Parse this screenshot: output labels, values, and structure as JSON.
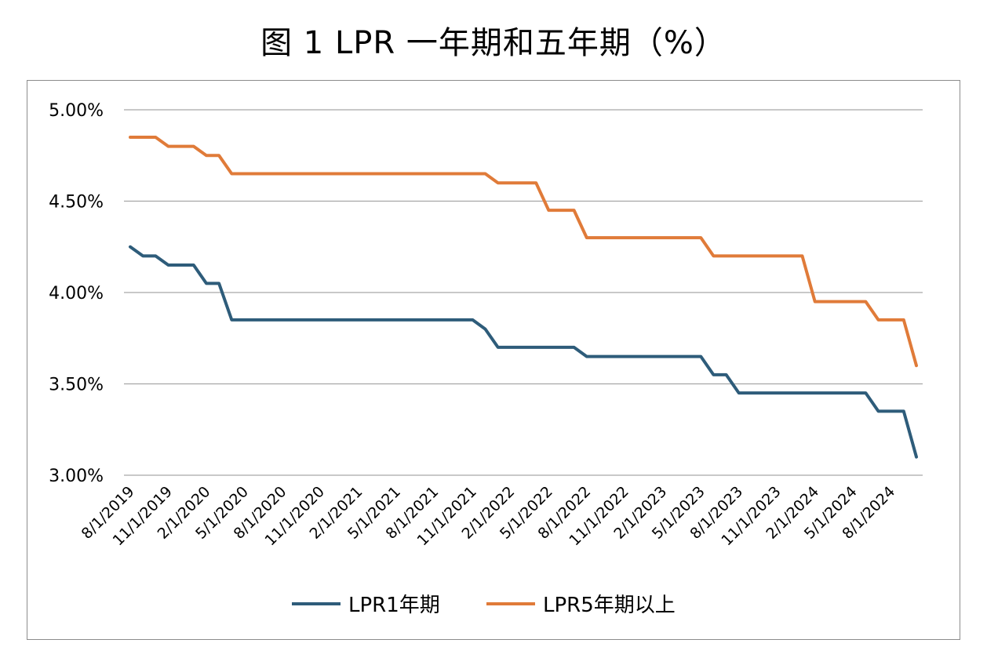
{
  "chart_data": {
    "type": "line",
    "title": "图 1 LPR 一年期和五年期（%）",
    "ylim": [
      3.0,
      5.0
    ],
    "y_ticks": [
      "3.00%",
      "3.50%",
      "4.00%",
      "4.50%",
      "5.00%"
    ],
    "y_tick_values": [
      3.0,
      3.5,
      4.0,
      4.5,
      5.0
    ],
    "x_tick_labels": [
      "8/1/2019",
      "11/1/2019",
      "2/1/2020",
      "5/1/2020",
      "8/1/2020",
      "11/1/2020",
      "2/1/2021",
      "5/1/2021",
      "8/1/2021",
      "11/1/2021",
      "2/1/2022",
      "5/1/2022",
      "8/1/2022",
      "11/1/2022",
      "2/1/2023",
      "5/1/2023",
      "8/1/2023",
      "11/1/2023",
      "2/1/2024",
      "5/1/2024",
      "8/1/2024"
    ],
    "grid": true,
    "legend_position": "bottom",
    "series": [
      {
        "name": "LPR1年期",
        "color": "#2e5c7a",
        "points": [
          [
            "2019-08",
            4.25
          ],
          [
            "2019-09",
            4.2
          ],
          [
            "2019-10",
            4.2
          ],
          [
            "2019-11",
            4.15
          ],
          [
            "2019-12",
            4.15
          ],
          [
            "2020-01",
            4.15
          ],
          [
            "2020-02",
            4.05
          ],
          [
            "2020-03",
            4.05
          ],
          [
            "2020-04",
            3.85
          ],
          [
            "2021-11",
            3.85
          ],
          [
            "2021-12",
            3.8
          ],
          [
            "2022-01",
            3.7
          ],
          [
            "2022-07",
            3.7
          ],
          [
            "2022-08",
            3.65
          ],
          [
            "2023-05",
            3.65
          ],
          [
            "2023-06",
            3.55
          ],
          [
            "2023-07",
            3.55
          ],
          [
            "2023-08",
            3.45
          ],
          [
            "2024-06",
            3.45
          ],
          [
            "2024-07",
            3.35
          ],
          [
            "2024-09",
            3.35
          ],
          [
            "2024-10",
            3.1
          ]
        ]
      },
      {
        "name": "LPR5年期以上",
        "color": "#e07b39",
        "points": [
          [
            "2019-08",
            4.85
          ],
          [
            "2019-10",
            4.85
          ],
          [
            "2019-11",
            4.8
          ],
          [
            "2020-01",
            4.8
          ],
          [
            "2020-02",
            4.75
          ],
          [
            "2020-03",
            4.75
          ],
          [
            "2020-04",
            4.65
          ],
          [
            "2021-12",
            4.65
          ],
          [
            "2022-01",
            4.6
          ],
          [
            "2022-04",
            4.6
          ],
          [
            "2022-05",
            4.45
          ],
          [
            "2022-07",
            4.45
          ],
          [
            "2022-08",
            4.3
          ],
          [
            "2023-05",
            4.3
          ],
          [
            "2023-06",
            4.2
          ],
          [
            "2024-01",
            4.2
          ],
          [
            "2024-02",
            3.95
          ],
          [
            "2024-06",
            3.95
          ],
          [
            "2024-07",
            3.85
          ],
          [
            "2024-09",
            3.85
          ],
          [
            "2024-10",
            3.6
          ]
        ]
      }
    ]
  }
}
